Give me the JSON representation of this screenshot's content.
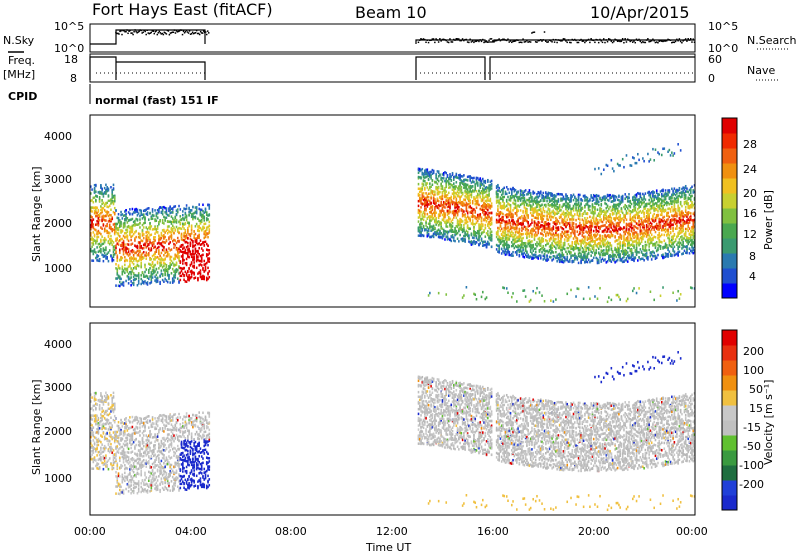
{
  "header": {
    "station": "Fort Hays East (fitACF)",
    "beam": "Beam 10",
    "date": "10/Apr/2015"
  },
  "noise_panel": {
    "left_label": "N.Sky",
    "right_label": "N.Search",
    "left_ticks": [
      "10^5",
      "10^0"
    ],
    "right_ticks": [
      "10^5",
      "10^0"
    ]
  },
  "freq_panel": {
    "left_label_1": "Freq.",
    "left_label_2": "[MHz]",
    "right_label": "Nave",
    "left_ticks": [
      "18",
      "8"
    ],
    "right_ticks": [
      "60",
      "0"
    ]
  },
  "cpid": {
    "label": "CPID",
    "mode_text": "normal (fast) 151 IF"
  },
  "power_panel": {
    "ylabel": "Slant Range [km]",
    "yticks": [
      "4000",
      "3000",
      "2000",
      "1000"
    ],
    "colorbar_label": "Power [dB]",
    "colorbar_ticks": [
      "28",
      "24",
      "20",
      "16",
      "12",
      "8",
      "4"
    ],
    "colorbar_colors": [
      "#0000ff",
      "#1f4fd0",
      "#2a7ab0",
      "#3a9a70",
      "#4aa850",
      "#80c040",
      "#c8d030",
      "#f0c020",
      "#f09010",
      "#f06010",
      "#f02a00",
      "#e00000"
    ]
  },
  "velocity_panel": {
    "ylabel": "Slant Range [km]",
    "yticks": [
      "4000",
      "3000",
      "2000",
      "1000"
    ],
    "colorbar_label": "Velocity [m s⁻¹]",
    "colorbar_ticks": [
      "200",
      "100",
      "50",
      "15",
      "-15",
      "-50",
      "-100",
      "-200"
    ],
    "colorbar_colors": [
      "#1a2acc",
      "#2040d8",
      "#1f6e40",
      "#3a9a40",
      "#60c030",
      "#c0c0c0",
      "#c8c8c8",
      "#f0c040",
      "#f09010",
      "#f06010",
      "#e83010",
      "#e00000"
    ]
  },
  "time_axis": {
    "label": "Time UT",
    "ticks": [
      "00:00",
      "04:00",
      "08:00",
      "12:00",
      "16:00",
      "20:00",
      "00:00"
    ]
  },
  "chart_data": [
    {
      "type": "heatmap",
      "name": "power",
      "x_range_hours": [
        0,
        24
      ],
      "y_range_km": [
        0,
        4500
      ],
      "colorbar_range_db": [
        0,
        30
      ],
      "coverage_hours": [
        [
          0,
          4.7
        ],
        [
          13.0,
          24.0
        ]
      ],
      "data_gap_hours": [
        4.7,
        13.0
      ],
      "gap_at_hour": 16.0
    },
    {
      "type": "heatmap",
      "name": "velocity",
      "x_range_hours": [
        0,
        24
      ],
      "y_range_km": [
        0,
        4500
      ],
      "colorbar_range": [
        -250,
        250
      ],
      "coverage_hours": [
        [
          0,
          4.7
        ],
        [
          13.0,
          24.0
        ]
      ],
      "data_gap_hours": [
        4.7,
        13.0
      ]
    }
  ]
}
